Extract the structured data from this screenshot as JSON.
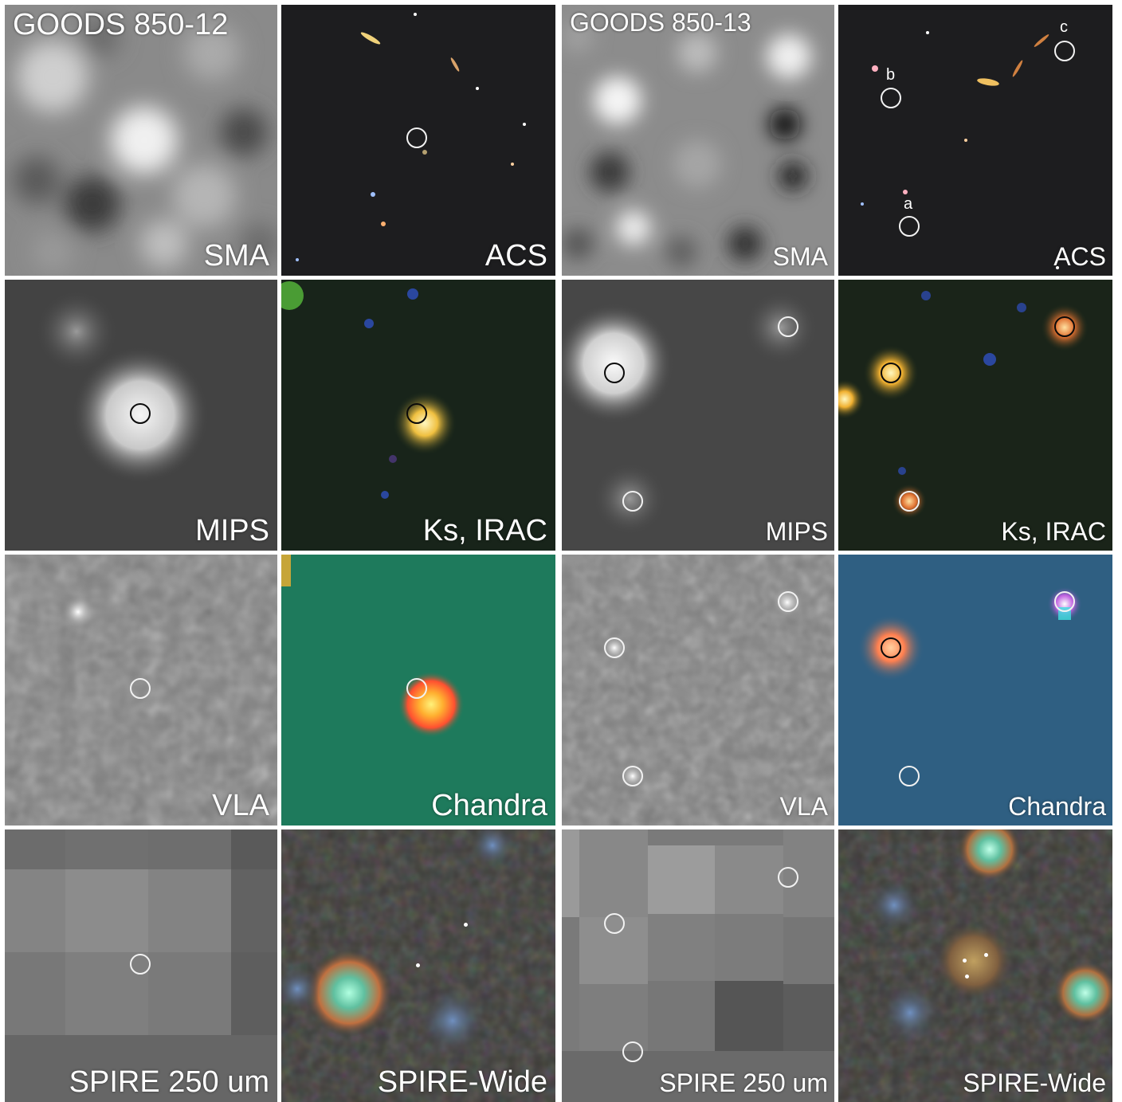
{
  "sources": [
    {
      "title": "GOODS 850-12",
      "panels": [
        {
          "label": "SMA"
        },
        {
          "label": "ACS"
        },
        {
          "label": "MIPS"
        },
        {
          "label": "Ks, IRAC"
        },
        {
          "label": "VLA"
        },
        {
          "label": "Chandra"
        },
        {
          "label": "SPIRE 250 um"
        },
        {
          "label": "SPIRE-Wide"
        }
      ]
    },
    {
      "title": "GOODS 850-13",
      "panels": [
        {
          "label": "SMA"
        },
        {
          "label": "ACS",
          "markers": [
            "a",
            "b",
            "c"
          ]
        },
        {
          "label": "MIPS"
        },
        {
          "label": "Ks, IRAC"
        },
        {
          "label": "VLA"
        },
        {
          "label": "Chandra"
        },
        {
          "label": "SPIRE 250 um"
        },
        {
          "label": "SPIRE-Wide"
        }
      ]
    }
  ],
  "palette": {
    "chandra_left_bg": "#1e7a5c",
    "chandra_right_bg": "#2f5f82",
    "acs_bg": "#1d1d1f",
    "irac_bg": "#1a2a1a"
  }
}
